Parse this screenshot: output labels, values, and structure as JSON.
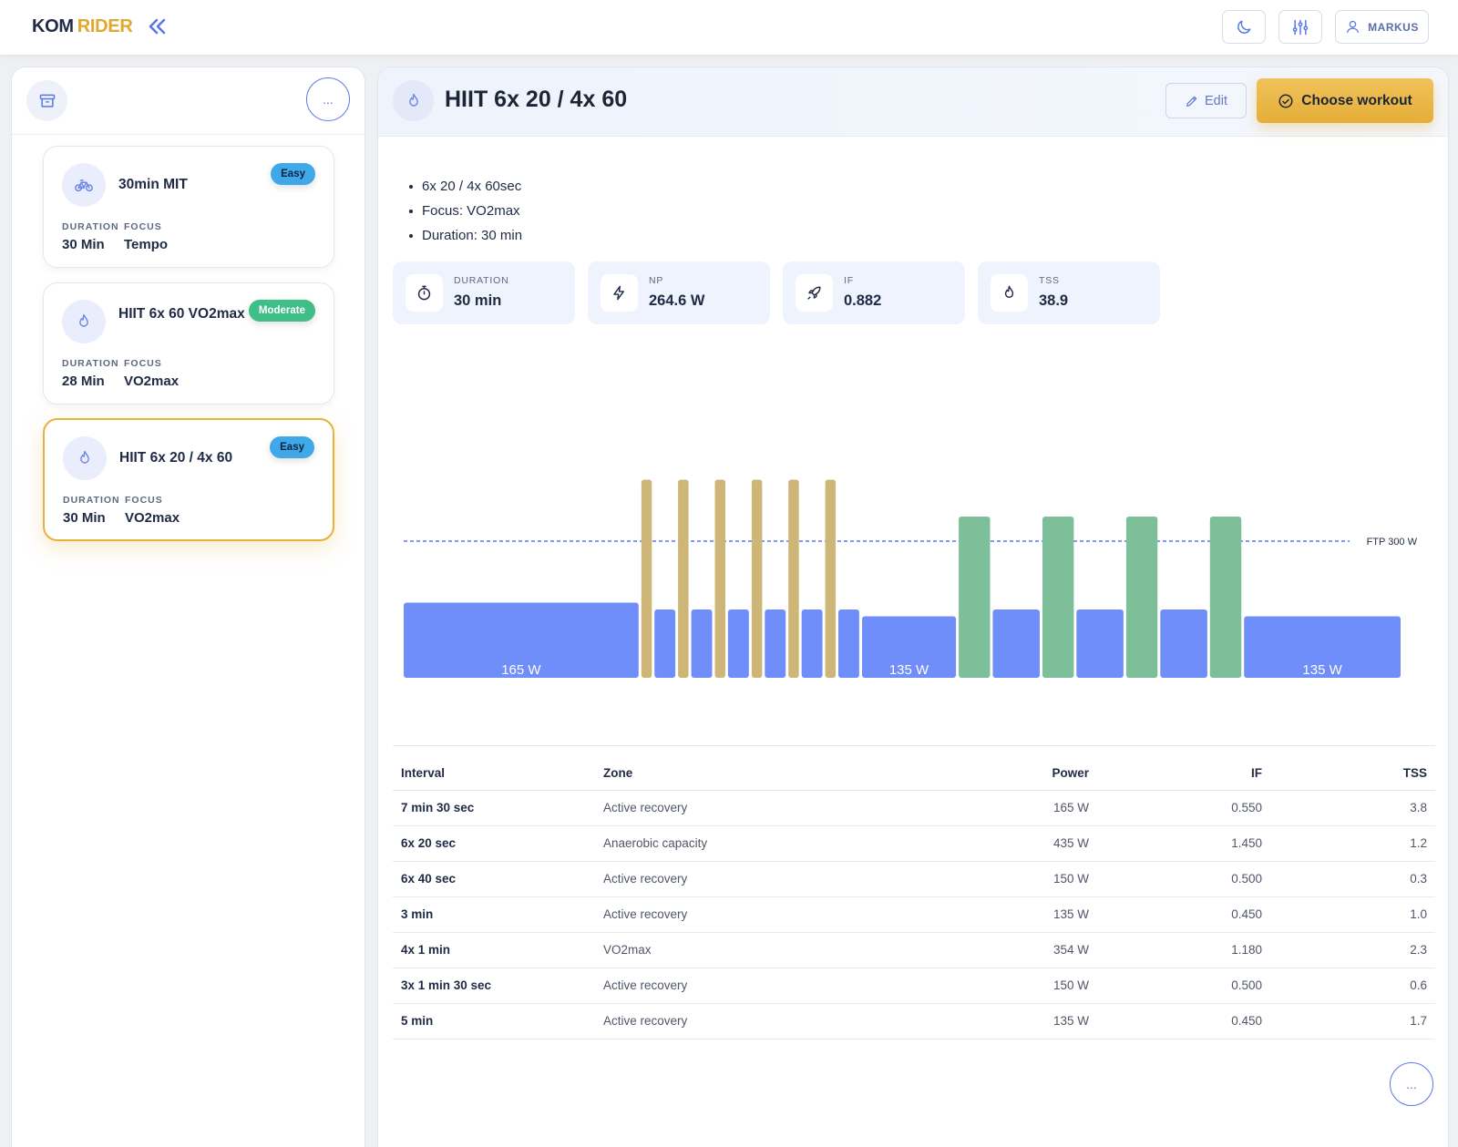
{
  "app": {
    "brand_kom": "KOM",
    "brand_rider": "RIDER",
    "user": "MARKUS"
  },
  "sidebar": {
    "more_label": "...",
    "cards": [
      {
        "title": "30min MIT",
        "badge": "Easy",
        "duration_label": "DURATION",
        "focus_label": "FOCUS",
        "duration": "30 Min",
        "focus": "Tempo",
        "icon": "bike-icon"
      },
      {
        "title": "HIIT 6x 60 VO2max",
        "badge": "Moderate",
        "duration_label": "DURATION",
        "focus_label": "FOCUS",
        "duration": "28 Min",
        "focus": "VO2max",
        "icon": "flame-icon"
      },
      {
        "title": "HIIT 6x 20 / 4x 60",
        "badge": "Easy",
        "duration_label": "DURATION",
        "focus_label": "FOCUS",
        "duration": "30 Min",
        "focus": "VO2max",
        "icon": "flame-icon",
        "selected": true
      }
    ]
  },
  "workout": {
    "title": "HIIT 6x 20 / 4x 60",
    "edit_label": "Edit",
    "choose_label": "Choose workout",
    "description": [
      "6x 20 / 4x 60sec",
      "Focus: VO2max",
      "Duration: 30 min"
    ],
    "stats": [
      {
        "label": "DURATION",
        "value": "30 min",
        "icon": "stopwatch-icon"
      },
      {
        "label": "NP",
        "value": "264.6 W",
        "icon": "lightning-icon"
      },
      {
        "label": "IF",
        "value": "0.882",
        "icon": "rocket-icon"
      },
      {
        "label": "TSS",
        "value": "38.9",
        "icon": "flame-icon"
      }
    ],
    "more_label": "..."
  },
  "chart_data": {
    "type": "bar",
    "ftp": 300,
    "ftp_label": "FTP 300 W",
    "x_unit": "seconds",
    "colors": {
      "recovery": "#6f8ef9",
      "anaerobic": "#cdb677",
      "vo2max": "#7dbf98",
      "ftp_line": "#5a78e6"
    },
    "segments": [
      {
        "duration": 450,
        "power": 165,
        "zone": "recovery",
        "label": "165 W"
      },
      {
        "duration": 20,
        "power": 435,
        "zone": "anaerobic"
      },
      {
        "duration": 40,
        "power": 150,
        "zone": "recovery"
      },
      {
        "duration": 20,
        "power": 435,
        "zone": "anaerobic"
      },
      {
        "duration": 40,
        "power": 150,
        "zone": "recovery"
      },
      {
        "duration": 20,
        "power": 435,
        "zone": "anaerobic"
      },
      {
        "duration": 40,
        "power": 150,
        "zone": "recovery"
      },
      {
        "duration": 20,
        "power": 435,
        "zone": "anaerobic"
      },
      {
        "duration": 40,
        "power": 150,
        "zone": "recovery"
      },
      {
        "duration": 20,
        "power": 435,
        "zone": "anaerobic"
      },
      {
        "duration": 40,
        "power": 150,
        "zone": "recovery"
      },
      {
        "duration": 20,
        "power": 435,
        "zone": "anaerobic"
      },
      {
        "duration": 40,
        "power": 150,
        "zone": "recovery"
      },
      {
        "duration": 180,
        "power": 135,
        "zone": "recovery",
        "label": "135 W"
      },
      {
        "duration": 60,
        "power": 354,
        "zone": "vo2max"
      },
      {
        "duration": 90,
        "power": 150,
        "zone": "recovery"
      },
      {
        "duration": 60,
        "power": 354,
        "zone": "vo2max"
      },
      {
        "duration": 90,
        "power": 150,
        "zone": "recovery"
      },
      {
        "duration": 60,
        "power": 354,
        "zone": "vo2max"
      },
      {
        "duration": 90,
        "power": 150,
        "zone": "recovery"
      },
      {
        "duration": 60,
        "power": 354,
        "zone": "vo2max"
      },
      {
        "duration": 300,
        "power": 135,
        "zone": "recovery",
        "label": "135 W"
      }
    ]
  },
  "table": {
    "headers": {
      "interval": "Interval",
      "zone": "Zone",
      "power": "Power",
      "if": "IF",
      "tss": "TSS"
    },
    "rows": [
      {
        "interval": "7 min 30 sec",
        "zone": "Active recovery",
        "power": "165 W",
        "if": "0.550",
        "tss": "3.8"
      },
      {
        "interval": "6x 20 sec",
        "zone": "Anaerobic capacity",
        "power": "435 W",
        "if": "1.450",
        "tss": "1.2"
      },
      {
        "interval": "6x 40 sec",
        "zone": "Active recovery",
        "power": "150 W",
        "if": "0.500",
        "tss": "0.3"
      },
      {
        "interval": "3 min",
        "zone": "Active recovery",
        "power": "135 W",
        "if": "0.450",
        "tss": "1.0"
      },
      {
        "interval": "4x 1 min",
        "zone": "VO2max",
        "power": "354 W",
        "if": "1.180",
        "tss": "2.3"
      },
      {
        "interval": "3x 1 min 30 sec",
        "zone": "Active recovery",
        "power": "150 W",
        "if": "0.500",
        "tss": "0.6"
      },
      {
        "interval": "5 min",
        "zone": "Active recovery",
        "power": "135 W",
        "if": "0.450",
        "tss": "1.7"
      }
    ]
  }
}
